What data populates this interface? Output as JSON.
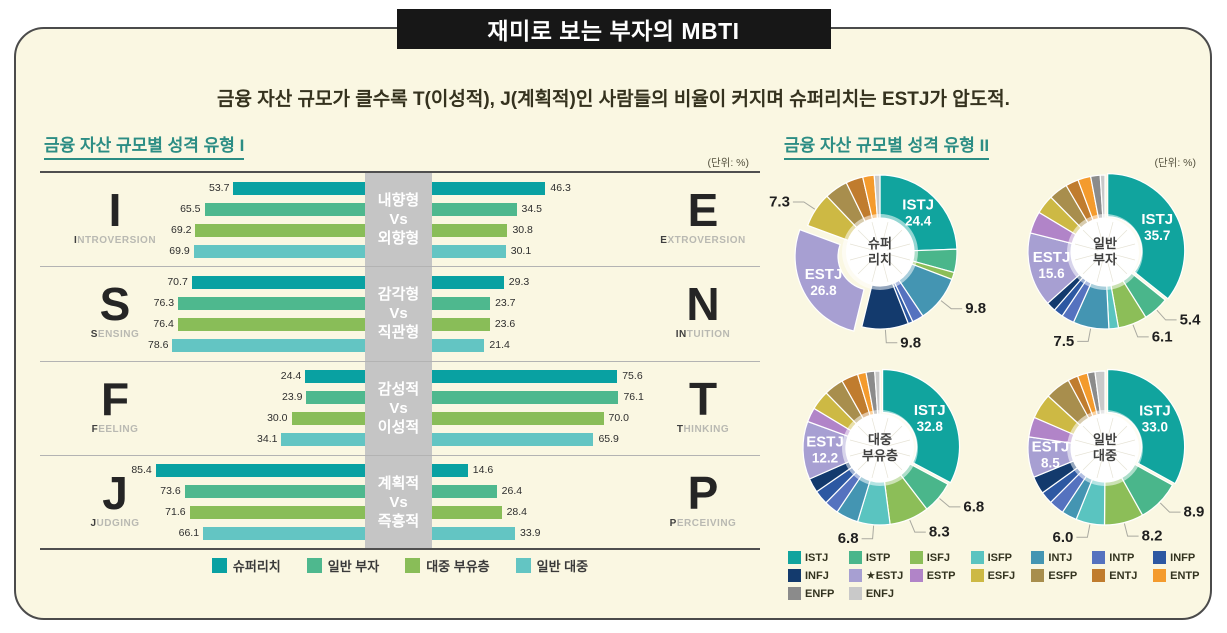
{
  "title": "재미로 보는 부자의 MBTI",
  "subtitle": "금융 자산 규모가 클수록 T(이성적), J(계획적)인 사람들의 비율이 커지며 슈퍼리치는 ESTJ가 압도적.",
  "unit_label": "(단위: %)",
  "bar_section": {
    "header": "금융 자산 규모별 성격 유형 I",
    "series_names": [
      "슈퍼리치",
      "일반 부자",
      "대중 부유층",
      "일반 대중"
    ],
    "series_colors": [
      "#09a1a2",
      "#4eb88e",
      "#89bd58",
      "#63c5c3"
    ]
  },
  "donut_section": {
    "header": "금융 자산 규모별 성격 유형 II",
    "mbti_colors": {
      "ISTJ": "#11a49e",
      "ISTP": "#4ab68b",
      "ISFJ": "#8cbe58",
      "ISFP": "#5ac4c0",
      "INTJ": "#4495b2",
      "INTP": "#5572bf",
      "INFP": "#2d58a2",
      "INFJ": "#133a6d",
      "ESTJ": "#a79fd2",
      "ESTP": "#b184c8",
      "ESFJ": "#cdb944",
      "ESFP": "#a88e4d",
      "ENTJ": "#c07c2e",
      "ENTP": "#f49b2d",
      "ENFP": "#8b8b8b",
      "ENFJ": "#c9c9c9"
    },
    "legend": [
      {
        "type": "ISTJ",
        "label": "ISTJ"
      },
      {
        "type": "ISTP",
        "label": "ISTP"
      },
      {
        "type": "ISFJ",
        "label": "ISFJ"
      },
      {
        "type": "ISFP",
        "label": "ISFP"
      },
      {
        "type": "INTJ",
        "label": "INTJ"
      },
      {
        "type": "INTP",
        "label": "INTP"
      },
      {
        "type": "INFP",
        "label": "INFP"
      },
      {
        "type": "INFJ",
        "label": "INFJ"
      },
      {
        "type": "ESTJ",
        "label": "★ESTJ"
      },
      {
        "type": "ESTP",
        "label": "ESTP"
      },
      {
        "type": "ESFJ",
        "label": "ESFJ"
      },
      {
        "type": "ESFP",
        "label": "ESFP"
      },
      {
        "type": "ENTJ",
        "label": "ENTJ"
      },
      {
        "type": "ENTP",
        "label": "ENTP"
      },
      {
        "type": "ENFP",
        "label": "ENFP"
      },
      {
        "type": "ENFJ",
        "label": "ENFJ"
      }
    ]
  },
  "chart_data": [
    {
      "type": "bar",
      "title": "금융 자산 규모별 성격 유형 I",
      "unit": "%",
      "orientation": "horizontal-diverging",
      "series_names": [
        "슈퍼리치",
        "일반 부자",
        "대중 부유층",
        "일반 대중"
      ],
      "groups": [
        {
          "left": {
            "letter": "I",
            "word": "INTROVERSION",
            "bold": "I"
          },
          "right": {
            "letter": "E",
            "word": "EXTROVERSION",
            "bold": "E"
          },
          "center_labels": [
            "내향형",
            "Vs",
            "외향형"
          ],
          "left_values": [
            53.7,
            65.5,
            69.2,
            69.9
          ],
          "right_values": [
            46.3,
            34.5,
            30.8,
            30.1
          ]
        },
        {
          "left": {
            "letter": "S",
            "word": "SENSING",
            "bold": "S"
          },
          "right": {
            "letter": "N",
            "word": "INTUITION",
            "bold": "IN"
          },
          "center_labels": [
            "감각형",
            "Vs",
            "직관형"
          ],
          "left_values": [
            70.7,
            76.3,
            76.4,
            78.6
          ],
          "right_values": [
            29.3,
            23.7,
            23.6,
            21.4
          ]
        },
        {
          "left": {
            "letter": "F",
            "word": "FEELING",
            "bold": "F"
          },
          "right": {
            "letter": "T",
            "word": "THINKING",
            "bold": "T"
          },
          "center_labels": [
            "감성적",
            "Vs",
            "이성적"
          ],
          "left_values": [
            24.4,
            23.9,
            30.0,
            34.1
          ],
          "right_values": [
            75.6,
            76.1,
            70.0,
            65.9
          ]
        },
        {
          "left": {
            "letter": "J",
            "word": "JUDGING",
            "bold": "J"
          },
          "right": {
            "letter": "P",
            "word": "PERCEIVING",
            "bold": "P"
          },
          "center_labels": [
            "계획적",
            "Vs",
            "즉흥적"
          ],
          "left_values": [
            85.4,
            73.6,
            71.6,
            66.1
          ],
          "right_values": [
            14.6,
            26.4,
            28.4,
            33.9
          ]
        }
      ]
    },
    {
      "type": "pie",
      "title": "슈퍼리치",
      "center_label": [
        "슈퍼",
        "리치"
      ],
      "explode": {
        "ESTJ": 9
      },
      "slices": [
        {
          "type": "ISTJ",
          "value": 24.4,
          "inside": true
        },
        {
          "type": "ISTP",
          "value": 4.9
        },
        {
          "type": "ISFJ",
          "value": 1.5
        },
        {
          "type": "ISFP",
          "value": 0
        },
        {
          "type": "INTJ",
          "value": 9.8,
          "callout": true
        },
        {
          "type": "INTP",
          "value": 2.4
        },
        {
          "type": "INFP",
          "value": 1.0
        },
        {
          "type": "INFJ",
          "value": 9.8,
          "callout": true
        },
        {
          "type": "ESTJ",
          "value": 26.8,
          "inside": true
        },
        {
          "type": "ESTP",
          "value": 0
        },
        {
          "type": "ESFJ",
          "value": 7.3,
          "callout": true
        },
        {
          "type": "ESFP",
          "value": 4.9
        },
        {
          "type": "ENTJ",
          "value": 3.6
        },
        {
          "type": "ENTP",
          "value": 2.4
        },
        {
          "type": "ENFP",
          "value": 0
        },
        {
          "type": "ENFJ",
          "value": 1.2
        }
      ]
    },
    {
      "type": "pie",
      "title": "일반 부자",
      "center_label": [
        "일반",
        "부자"
      ],
      "explode": {
        "ISTJ": 3
      },
      "slices": [
        {
          "type": "ISTJ",
          "value": 35.7,
          "inside": true
        },
        {
          "type": "ISTP",
          "value": 5.4,
          "callout": true
        },
        {
          "type": "ISFJ",
          "value": 6.1,
          "callout": true
        },
        {
          "type": "ISFP",
          "value": 2.0
        },
        {
          "type": "INTJ",
          "value": 7.5,
          "callout": true
        },
        {
          "type": "INTP",
          "value": 2.7
        },
        {
          "type": "INFP",
          "value": 2.0
        },
        {
          "type": "INFJ",
          "value": 2.0
        },
        {
          "type": "ESTJ",
          "value": 15.6,
          "inside": true
        },
        {
          "type": "ESTP",
          "value": 4.6
        },
        {
          "type": "ESFJ",
          "value": 4.0
        },
        {
          "type": "ESFP",
          "value": 4.0
        },
        {
          "type": "ENTJ",
          "value": 2.7
        },
        {
          "type": "ENTP",
          "value": 2.7
        },
        {
          "type": "ENFP",
          "value": 2.0
        },
        {
          "type": "ENFJ",
          "value": 1.0
        }
      ]
    },
    {
      "type": "pie",
      "title": "대중 부유층",
      "center_label": [
        "대중",
        "부유층"
      ],
      "explode": {
        "ISTJ": 3
      },
      "slices": [
        {
          "type": "ISTJ",
          "value": 32.8,
          "inside": true
        },
        {
          "type": "ISTP",
          "value": 6.8,
          "callout": true
        },
        {
          "type": "ISFJ",
          "value": 8.3,
          "callout": true
        },
        {
          "type": "ISFP",
          "value": 6.8,
          "callout": true
        },
        {
          "type": "INTJ",
          "value": 4.7
        },
        {
          "type": "INTP",
          "value": 3.0
        },
        {
          "type": "INFP",
          "value": 3.0
        },
        {
          "type": "INFJ",
          "value": 3.0
        },
        {
          "type": "ESTJ",
          "value": 12.2,
          "inside": true
        },
        {
          "type": "ESTP",
          "value": 3.0
        },
        {
          "type": "ESFJ",
          "value": 4.1
        },
        {
          "type": "ESFP",
          "value": 4.1
        },
        {
          "type": "ENTJ",
          "value": 3.5
        },
        {
          "type": "ENTP",
          "value": 1.8
        },
        {
          "type": "ENFP",
          "value": 1.8
        },
        {
          "type": "ENFJ",
          "value": 1.1
        }
      ]
    },
    {
      "type": "pie",
      "title": "일반 대중",
      "center_label": [
        "일반",
        "대중"
      ],
      "explode": {
        "ISTJ": 3
      },
      "slices": [
        {
          "type": "ISTJ",
          "value": 33.0,
          "inside": true
        },
        {
          "type": "ISTP",
          "value": 8.9,
          "callout": true
        },
        {
          "type": "ISFJ",
          "value": 8.2,
          "callout": true
        },
        {
          "type": "ISFP",
          "value": 6.0,
          "callout": true
        },
        {
          "type": "INTJ",
          "value": 3.2
        },
        {
          "type": "INTP",
          "value": 3.2
        },
        {
          "type": "INFP",
          "value": 2.6
        },
        {
          "type": "INFJ",
          "value": 3.7
        },
        {
          "type": "ESTJ",
          "value": 8.5,
          "inside": true
        },
        {
          "type": "ESTP",
          "value": 4.2
        },
        {
          "type": "ESFJ",
          "value": 5.3
        },
        {
          "type": "ESFP",
          "value": 5.3
        },
        {
          "type": "ENTJ",
          "value": 2.1
        },
        {
          "type": "ENTP",
          "value": 2.1
        },
        {
          "type": "ENFP",
          "value": 1.6
        },
        {
          "type": "ENFJ",
          "value": 2.1
        }
      ]
    }
  ]
}
